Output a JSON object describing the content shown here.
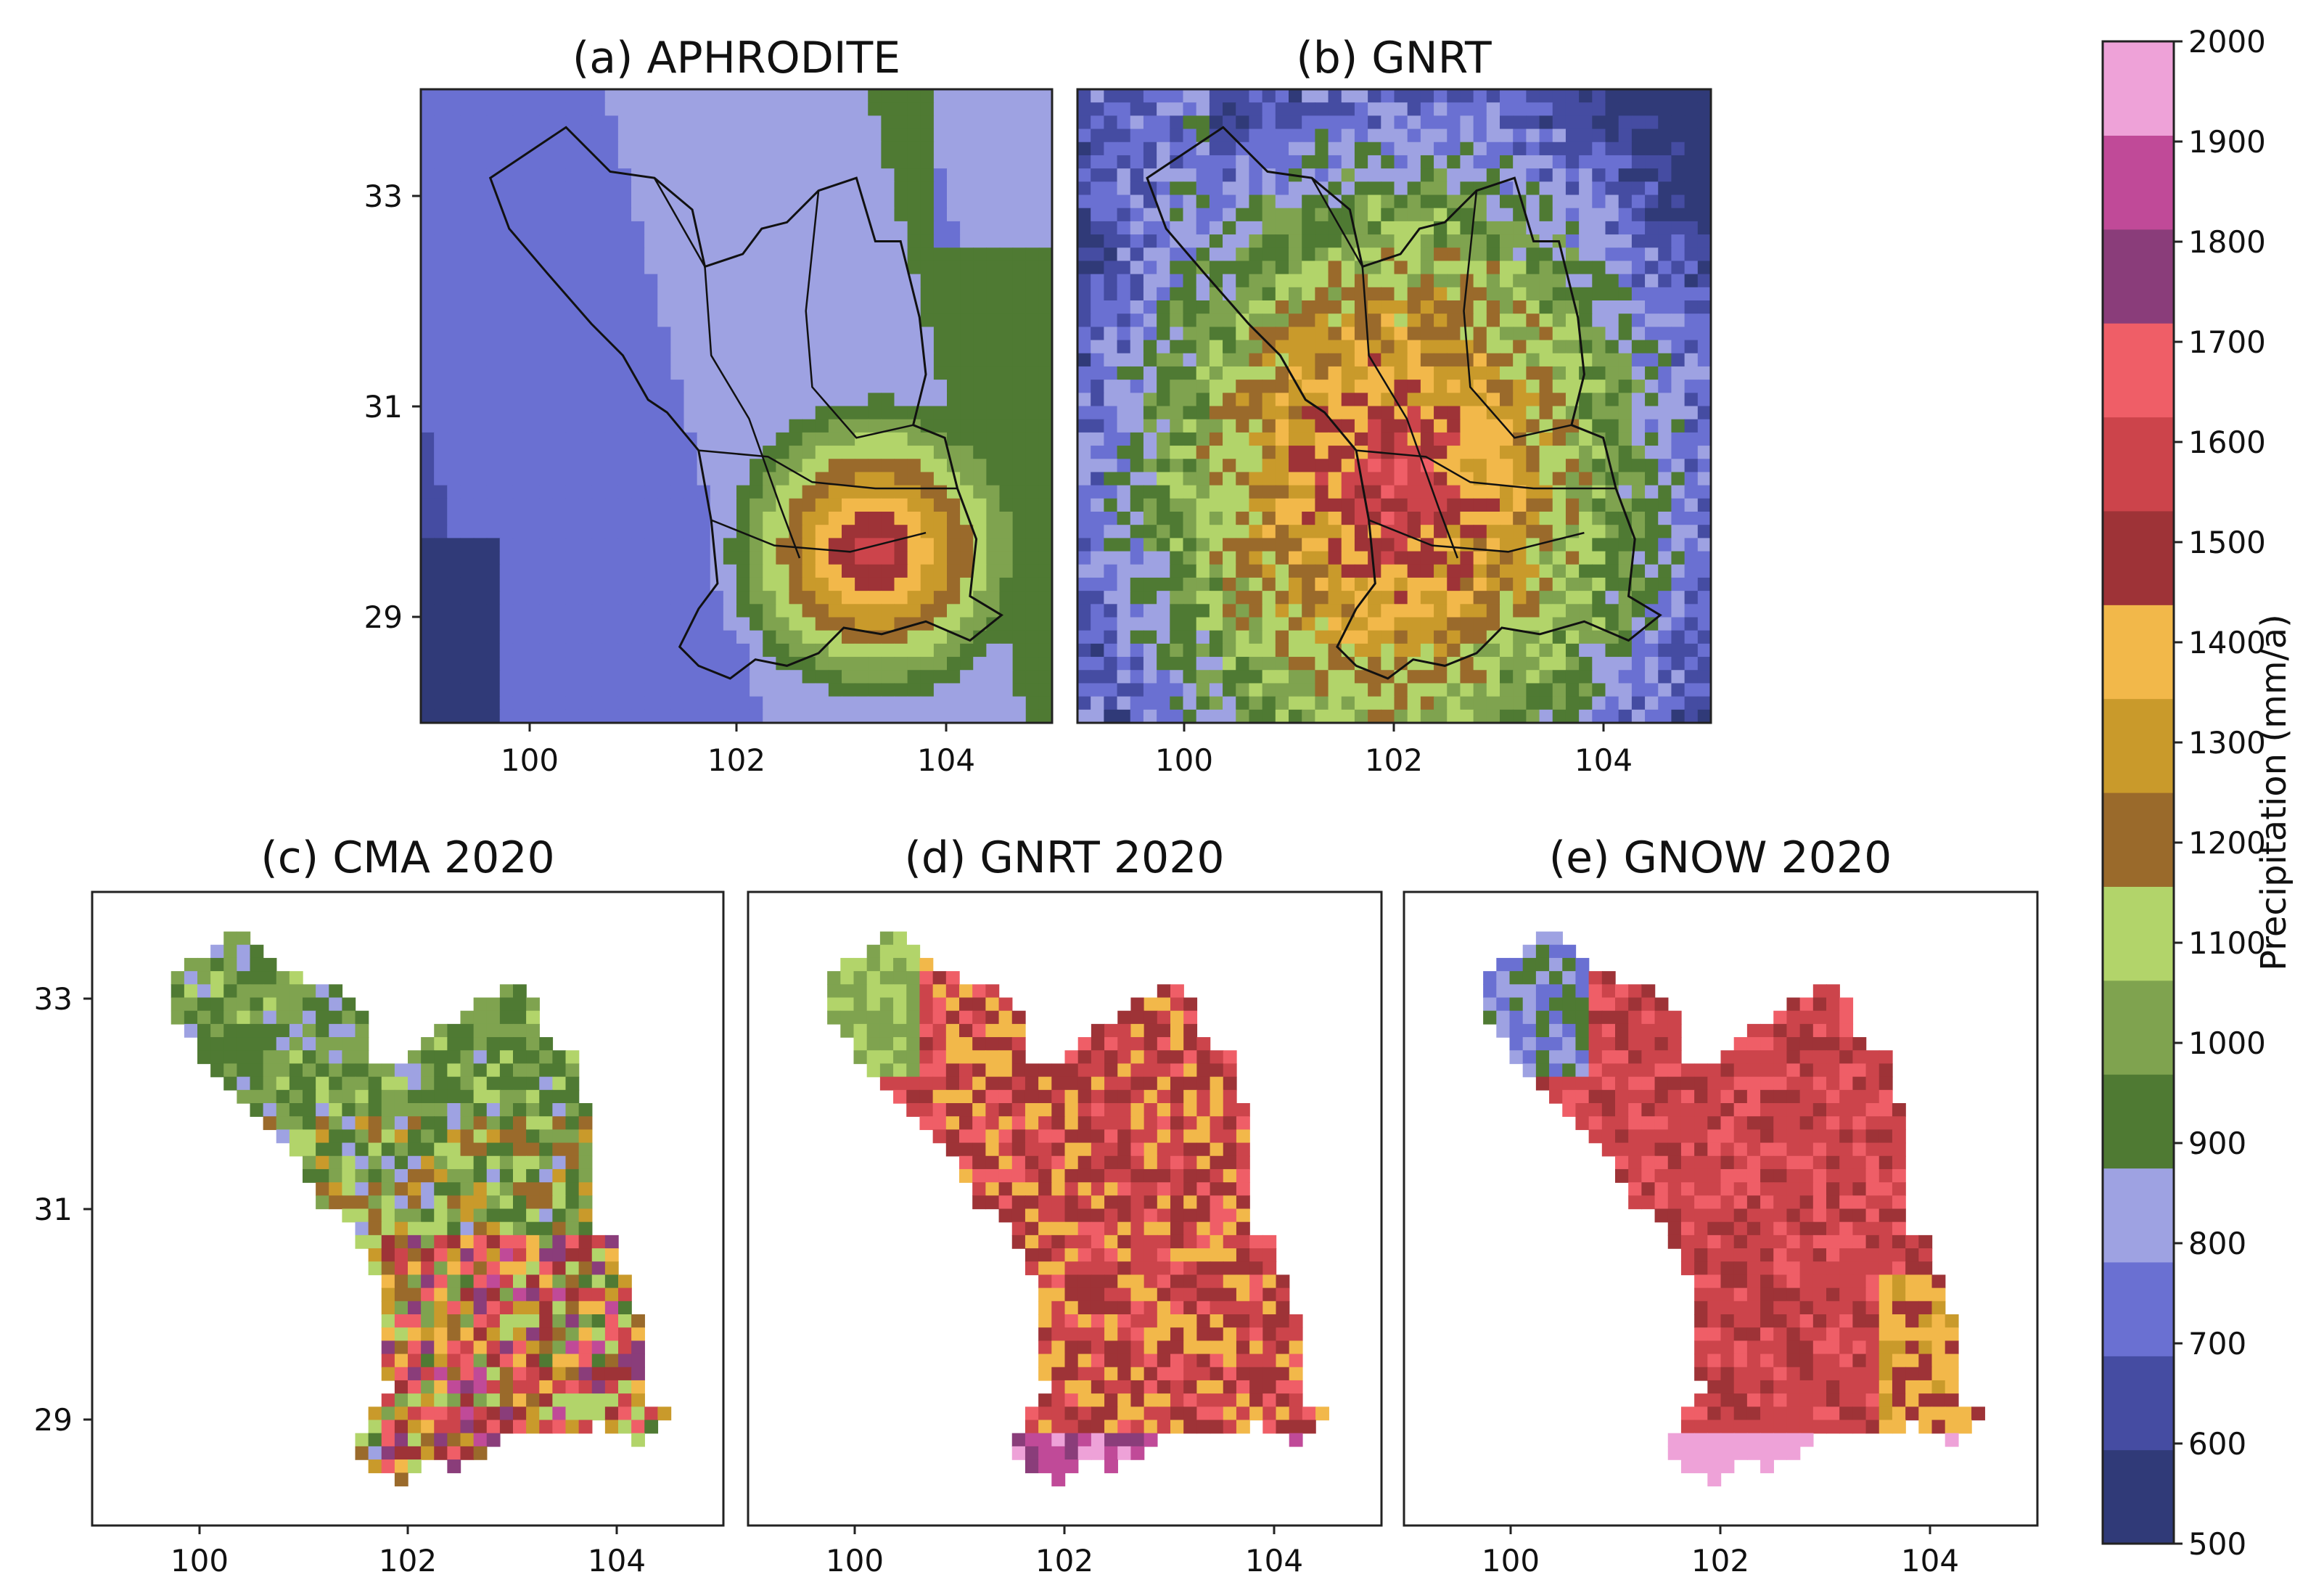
{
  "panels": [
    {
      "id": "a",
      "title": "(a) APHRODITE",
      "mode": "smooth",
      "masked": false,
      "outline": true,
      "x_ticks": [
        "100",
        "102",
        "104"
      ],
      "y_ticks": [
        "33",
        "31",
        "29"
      ],
      "show_y_ticks": true
    },
    {
      "id": "b",
      "title": "(b) GNRT",
      "mode": "noisy",
      "masked": false,
      "outline": true,
      "x_ticks": [
        "100",
        "102",
        "104"
      ],
      "y_ticks": [
        "33",
        "31",
        "29"
      ],
      "show_y_ticks": false
    },
    {
      "id": "c",
      "title": "(c) CMA 2020",
      "mode": "mixed",
      "masked": true,
      "outline": false,
      "x_ticks": [
        "100",
        "102",
        "104"
      ],
      "y_ticks": [
        "33",
        "31",
        "29"
      ],
      "show_y_ticks": true
    },
    {
      "id": "d",
      "title": "(d) GNRT 2020",
      "mode": "gnrt2020",
      "masked": true,
      "outline": false,
      "x_ticks": [
        "100",
        "102",
        "104"
      ],
      "y_ticks": [
        "33",
        "31",
        "29"
      ],
      "show_y_ticks": false
    },
    {
      "id": "e",
      "title": "(e) GNOW 2020",
      "mode": "gnow2020",
      "masked": true,
      "outline": false,
      "x_ticks": [
        "100",
        "102",
        "104"
      ],
      "y_ticks": [
        "33",
        "31",
        "29"
      ],
      "show_y_ticks": false
    }
  ],
  "colorbar": {
    "label": "Precipitation (mm/a)",
    "ticks": [
      "500",
      "600",
      "700",
      "800",
      "900",
      "1000",
      "1100",
      "1200",
      "1300",
      "1400",
      "1500",
      "1600",
      "1700",
      "1800",
      "1900",
      "2000"
    ],
    "colors": [
      "#303a78",
      "#454ca2",
      "#6a70d2",
      "#9ea2e2",
      "#4f7a33",
      "#7fa34f",
      "#b2d46a",
      "#9a6a2b",
      "#c99a2b",
      "#f2b84a",
      "#9e3337",
      "#cc444b",
      "#ef5e67",
      "#8a3d7a",
      "#c04a98",
      "#eea2d8"
    ]
  }
}
